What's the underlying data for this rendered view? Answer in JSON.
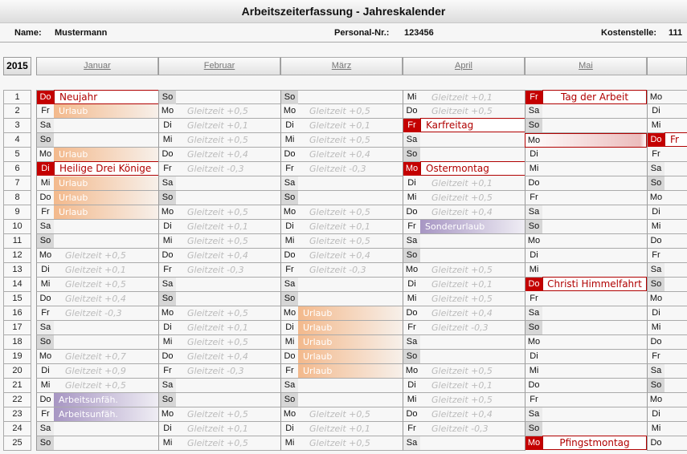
{
  "title": "Arbeitszeiterfassung - Jahreskalender",
  "info": {
    "name_label": "Name:",
    "name": "Mustermann",
    "pers_label": "Personal-Nr.:",
    "pers": "123456",
    "kst_label": "Kostenstelle:",
    "kst": "111"
  },
  "year": "2015",
  "colors": {
    "holiday": "#c40000",
    "urlaub": "#f3b98c",
    "absence": "#a796c3",
    "sunday": "#d6d6d6"
  },
  "months": [
    {
      "name": "Januar",
      "days": [
        [
          "Do",
          "Neujahr",
          "h"
        ],
        [
          "Fr",
          "Urlaub",
          "u"
        ],
        [
          "Sa",
          "",
          ""
        ],
        [
          "So",
          "",
          ""
        ],
        [
          "Mo",
          "Urlaub",
          "u"
        ],
        [
          "Di",
          "Heilige Drei Könige",
          "h"
        ],
        [
          "Mi",
          "Urlaub",
          "u"
        ],
        [
          "Do",
          "Urlaub",
          "u"
        ],
        [
          "Fr",
          "Urlaub",
          "u"
        ],
        [
          "Sa",
          "",
          ""
        ],
        [
          "So",
          "",
          ""
        ],
        [
          "Mo",
          "Gleitzeit +0,5",
          "g"
        ],
        [
          "Di",
          "Gleitzeit +0,1",
          "g"
        ],
        [
          "Mi",
          "Gleitzeit +0,5",
          "g"
        ],
        [
          "Do",
          "Gleitzeit +0,4",
          "g"
        ],
        [
          "Fr",
          "Gleitzeit -0,3",
          "g"
        ],
        [
          "Sa",
          "",
          ""
        ],
        [
          "So",
          "",
          ""
        ],
        [
          "Mo",
          "Gleitzeit +0,7",
          "g"
        ],
        [
          "Di",
          "Gleitzeit +0,9",
          "g"
        ],
        [
          "Mi",
          "Gleitzeit +0,5",
          "g"
        ],
        [
          "Do",
          "Arbeitsunfäh.",
          "a"
        ],
        [
          "Fr",
          "Arbeitsunfäh.",
          "a"
        ],
        [
          "Sa",
          "",
          ""
        ],
        [
          "So",
          "",
          ""
        ]
      ]
    },
    {
      "name": "Februar",
      "days": [
        [
          "So",
          "",
          ""
        ],
        [
          "Mo",
          "Gleitzeit +0,5",
          "g"
        ],
        [
          "Di",
          "Gleitzeit +0,1",
          "g"
        ],
        [
          "Mi",
          "Gleitzeit +0,5",
          "g"
        ],
        [
          "Do",
          "Gleitzeit +0,4",
          "g"
        ],
        [
          "Fr",
          "Gleitzeit -0,3",
          "g"
        ],
        [
          "Sa",
          "",
          ""
        ],
        [
          "So",
          "",
          ""
        ],
        [
          "Mo",
          "Gleitzeit +0,5",
          "g"
        ],
        [
          "Di",
          "Gleitzeit +0,1",
          "g"
        ],
        [
          "Mi",
          "Gleitzeit +0,5",
          "g"
        ],
        [
          "Do",
          "Gleitzeit +0,4",
          "g"
        ],
        [
          "Fr",
          "Gleitzeit -0,3",
          "g"
        ],
        [
          "Sa",
          "",
          ""
        ],
        [
          "So",
          "",
          ""
        ],
        [
          "Mo",
          "Gleitzeit +0,5",
          "g"
        ],
        [
          "Di",
          "Gleitzeit +0,1",
          "g"
        ],
        [
          "Mi",
          "Gleitzeit +0,5",
          "g"
        ],
        [
          "Do",
          "Gleitzeit +0,4",
          "g"
        ],
        [
          "Fr",
          "Gleitzeit -0,3",
          "g"
        ],
        [
          "Sa",
          "",
          ""
        ],
        [
          "So",
          "",
          ""
        ],
        [
          "Mo",
          "Gleitzeit +0,5",
          "g"
        ],
        [
          "Di",
          "Gleitzeit +0,1",
          "g"
        ],
        [
          "Mi",
          "Gleitzeit +0,5",
          "g"
        ]
      ]
    },
    {
      "name": "März",
      "days": [
        [
          "So",
          "",
          ""
        ],
        [
          "Mo",
          "Gleitzeit +0,5",
          "g"
        ],
        [
          "Di",
          "Gleitzeit +0,1",
          "g"
        ],
        [
          "Mi",
          "Gleitzeit +0,5",
          "g"
        ],
        [
          "Do",
          "Gleitzeit +0,4",
          "g"
        ],
        [
          "Fr",
          "Gleitzeit -0,3",
          "g"
        ],
        [
          "Sa",
          "",
          ""
        ],
        [
          "So",
          "",
          ""
        ],
        [
          "Mo",
          "Gleitzeit +0,5",
          "g"
        ],
        [
          "Di",
          "Gleitzeit +0,1",
          "g"
        ],
        [
          "Mi",
          "Gleitzeit +0,5",
          "g"
        ],
        [
          "Do",
          "Gleitzeit +0,4",
          "g"
        ],
        [
          "Fr",
          "Gleitzeit -0,3",
          "g"
        ],
        [
          "Sa",
          "",
          ""
        ],
        [
          "So",
          "",
          ""
        ],
        [
          "Mo",
          "Urlaub",
          "u"
        ],
        [
          "Di",
          "Urlaub",
          "u"
        ],
        [
          "Mi",
          "Urlaub",
          "u"
        ],
        [
          "Do",
          "Urlaub",
          "u"
        ],
        [
          "Fr",
          "Urlaub",
          "u"
        ],
        [
          "Sa",
          "",
          ""
        ],
        [
          "So",
          "",
          ""
        ],
        [
          "Mo",
          "Gleitzeit +0,5",
          "g"
        ],
        [
          "Di",
          "Gleitzeit +0,1",
          "g"
        ],
        [
          "Mi",
          "Gleitzeit +0,5",
          "g"
        ]
      ]
    },
    {
      "name": "April",
      "days": [
        [
          "Mi",
          "Gleitzeit +0,1",
          "g"
        ],
        [
          "Do",
          "Gleitzeit +0,5",
          "g"
        ],
        [
          "Fr",
          "Karfreitag",
          "h"
        ],
        [
          "Sa",
          "",
          ""
        ],
        [
          "So",
          "",
          ""
        ],
        [
          "Mo",
          "Ostermontag",
          "h"
        ],
        [
          "Di",
          "Gleitzeit +0,1",
          "g"
        ],
        [
          "Mi",
          "Gleitzeit +0,5",
          "g"
        ],
        [
          "Do",
          "Gleitzeit +0,4",
          "g"
        ],
        [
          "Fr",
          "Sonderurlaub",
          "a"
        ],
        [
          "Sa",
          "",
          ""
        ],
        [
          "So",
          "",
          ""
        ],
        [
          "Mo",
          "Gleitzeit +0,5",
          "g"
        ],
        [
          "Di",
          "Gleitzeit +0,1",
          "g"
        ],
        [
          "Mi",
          "Gleitzeit +0,5",
          "g"
        ],
        [
          "Do",
          "Gleitzeit +0,4",
          "g"
        ],
        [
          "Fr",
          "Gleitzeit -0,3",
          "g"
        ],
        [
          "Sa",
          "",
          ""
        ],
        [
          "So",
          "",
          ""
        ],
        [
          "Mo",
          "Gleitzeit +0,5",
          "g"
        ],
        [
          "Di",
          "Gleitzeit +0,1",
          "g"
        ],
        [
          "Mi",
          "Gleitzeit +0,5",
          "g"
        ],
        [
          "Do",
          "Gleitzeit +0,4",
          "g"
        ],
        [
          "Fr",
          "Gleitzeit -0,3",
          "g"
        ],
        [
          "Sa",
          "",
          ""
        ]
      ]
    },
    {
      "name": "Mai",
      "days": [
        [
          "Fr",
          "Tag der Arbeit",
          "hc"
        ],
        [
          "Sa",
          "",
          ""
        ],
        [
          "So",
          "",
          ""
        ],
        [
          "Mo",
          "",
          "sel"
        ],
        [
          "Di",
          "",
          ""
        ],
        [
          "Mi",
          "",
          ""
        ],
        [
          "Do",
          "",
          ""
        ],
        [
          "Fr",
          "",
          ""
        ],
        [
          "Sa",
          "",
          ""
        ],
        [
          "So",
          "",
          ""
        ],
        [
          "Mo",
          "",
          ""
        ],
        [
          "Di",
          "",
          ""
        ],
        [
          "Mi",
          "",
          ""
        ],
        [
          "Do",
          "Christi Himmelfahrt",
          "hc"
        ],
        [
          "Fr",
          "",
          ""
        ],
        [
          "Sa",
          "",
          ""
        ],
        [
          "So",
          "",
          ""
        ],
        [
          "Mo",
          "",
          ""
        ],
        [
          "Di",
          "",
          ""
        ],
        [
          "Mi",
          "",
          ""
        ],
        [
          "Do",
          "",
          ""
        ],
        [
          "Fr",
          "",
          ""
        ],
        [
          "Sa",
          "",
          ""
        ],
        [
          "So",
          "",
          ""
        ],
        [
          "Mo",
          "Pfingstmontag",
          "hc"
        ]
      ]
    },
    {
      "name": "",
      "days": [
        [
          "Mo",
          "",
          ""
        ],
        [
          "Di",
          "",
          ""
        ],
        [
          "Mi",
          "",
          ""
        ],
        [
          "Do",
          "Fr",
          "h"
        ],
        [
          "Fr",
          "",
          ""
        ],
        [
          "Sa",
          "",
          ""
        ],
        [
          "So",
          "",
          ""
        ],
        [
          "Mo",
          "",
          ""
        ],
        [
          "Di",
          "",
          ""
        ],
        [
          "Mi",
          "",
          ""
        ],
        [
          "Do",
          "",
          ""
        ],
        [
          "Fr",
          "",
          ""
        ],
        [
          "Sa",
          "",
          ""
        ],
        [
          "So",
          "",
          ""
        ],
        [
          "Mo",
          "",
          ""
        ],
        [
          "Di",
          "",
          ""
        ],
        [
          "Mi",
          "",
          ""
        ],
        [
          "Do",
          "",
          ""
        ],
        [
          "Fr",
          "",
          ""
        ],
        [
          "Sa",
          "",
          ""
        ],
        [
          "So",
          "",
          ""
        ],
        [
          "Mo",
          "",
          ""
        ],
        [
          "Di",
          "",
          ""
        ],
        [
          "Mi",
          "",
          ""
        ],
        [
          "Do",
          "",
          ""
        ]
      ]
    }
  ]
}
